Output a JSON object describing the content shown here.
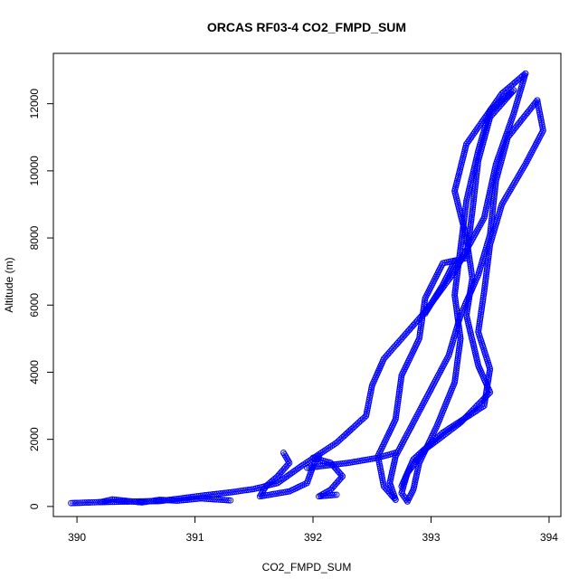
{
  "chart_data": {
    "type": "scatter",
    "title": "ORCAS RF03-4 CO2_FMPD_SUM",
    "xlabel": "CO2_FMPD_SUM",
    "ylabel": "Altitude (m)",
    "xlim": [
      389.8,
      394.1
    ],
    "ylim": [
      -300,
      13500
    ],
    "xticks": [
      390,
      391,
      392,
      393,
      394
    ],
    "yticks": [
      0,
      2000,
      4000,
      6000,
      8000,
      10000,
      12000
    ],
    "marker": "open-circle",
    "connected": true,
    "color": "#0000ff",
    "grid": false,
    "legend": "none",
    "series": [
      {
        "points": [
          [
            389.95,
            100
          ],
          [
            390.2,
            130
          ],
          [
            390.5,
            150
          ],
          [
            390.7,
            160
          ],
          [
            390.9,
            250
          ],
          [
            391.1,
            340
          ],
          [
            391.3,
            420
          ],
          [
            391.5,
            520
          ],
          [
            391.7,
            700
          ],
          [
            391.9,
            1200
          ],
          [
            392.2,
            1900
          ],
          [
            392.45,
            2700
          ],
          [
            392.5,
            3600
          ],
          [
            392.6,
            4400
          ],
          [
            392.75,
            5000
          ],
          [
            392.95,
            5800
          ],
          [
            393.2,
            7000
          ],
          [
            393.45,
            8600
          ],
          [
            393.55,
            10200
          ],
          [
            393.7,
            11700
          ],
          [
            393.8,
            12900
          ]
        ]
      },
      {
        "points": [
          [
            393.8,
            12900
          ],
          [
            393.6,
            12300
          ],
          [
            393.3,
            10800
          ],
          [
            393.2,
            9400
          ],
          [
            393.3,
            8000
          ],
          [
            393.35,
            6800
          ],
          [
            393.3,
            5700
          ],
          [
            393.4,
            4200
          ],
          [
            393.5,
            3400
          ],
          [
            393.25,
            2500
          ],
          [
            392.95,
            1700
          ],
          [
            392.8,
            1000
          ],
          [
            392.75,
            400
          ],
          [
            392.8,
            150
          ]
        ]
      },
      {
        "points": [
          [
            392.8,
            150
          ],
          [
            392.85,
            500
          ],
          [
            392.9,
            1300
          ],
          [
            393.05,
            2400
          ],
          [
            393.2,
            3700
          ],
          [
            393.25,
            5000
          ],
          [
            393.2,
            6300
          ],
          [
            393.25,
            7700
          ],
          [
            393.3,
            9100
          ],
          [
            393.4,
            10600
          ],
          [
            393.5,
            11800
          ],
          [
            393.7,
            12400
          ]
        ]
      },
      {
        "points": [
          [
            393.7,
            12400
          ],
          [
            393.5,
            11600
          ],
          [
            393.4,
            10300
          ],
          [
            393.35,
            8800
          ],
          [
            393.3,
            7400
          ],
          [
            393.1,
            7250
          ],
          [
            392.95,
            6200
          ],
          [
            392.9,
            5000
          ],
          [
            392.75,
            3900
          ],
          [
            392.7,
            2600
          ],
          [
            392.55,
            1500
          ],
          [
            392.6,
            600
          ],
          [
            392.7,
            200
          ]
        ]
      },
      {
        "points": [
          [
            392.7,
            200
          ],
          [
            392.65,
            700
          ],
          [
            392.7,
            1500
          ],
          [
            392.85,
            2500
          ],
          [
            393.0,
            3500
          ],
          [
            393.15,
            4500
          ],
          [
            393.25,
            5700
          ],
          [
            393.4,
            6900
          ],
          [
            393.5,
            8100
          ],
          [
            393.55,
            9700
          ],
          [
            393.65,
            11000
          ],
          [
            393.9,
            12100
          ]
        ]
      },
      {
        "points": [
          [
            393.9,
            12100
          ],
          [
            393.95,
            11200
          ],
          [
            393.8,
            10200
          ],
          [
            393.6,
            9000
          ],
          [
            393.5,
            7800
          ],
          [
            393.45,
            6400
          ],
          [
            393.4,
            5200
          ],
          [
            393.5,
            4100
          ],
          [
            393.45,
            3000
          ],
          [
            393.1,
            2200
          ],
          [
            392.85,
            1400
          ],
          [
            392.75,
            600
          ]
        ]
      },
      {
        "points": [
          [
            391.75,
            1600
          ],
          [
            391.8,
            1300
          ],
          [
            391.7,
            900
          ],
          [
            391.6,
            600
          ],
          [
            391.55,
            300
          ],
          [
            391.8,
            450
          ],
          [
            391.95,
            700
          ],
          [
            392.0,
            1200
          ],
          [
            392.05,
            1500
          ]
        ]
      },
      {
        "points": [
          [
            392.0,
            1450
          ],
          [
            392.15,
            1300
          ],
          [
            392.25,
            900
          ],
          [
            392.15,
            500
          ],
          [
            392.05,
            300
          ],
          [
            392.2,
            350
          ]
        ]
      },
      {
        "points": [
          [
            390.2,
            130
          ],
          [
            390.3,
            210
          ],
          [
            390.55,
            120
          ],
          [
            390.7,
            200
          ],
          [
            390.85,
            170
          ],
          [
            391.05,
            240
          ],
          [
            391.3,
            180
          ]
        ]
      },
      {
        "points": [
          [
            391.95,
            1150
          ],
          [
            392.3,
            1300
          ],
          [
            392.55,
            1450
          ],
          [
            392.7,
            1600
          ]
        ]
      },
      {
        "points": [
          [
            392.95,
            5750
          ],
          [
            393.1,
            6600
          ],
          [
            393.2,
            7300
          ]
        ]
      }
    ]
  }
}
